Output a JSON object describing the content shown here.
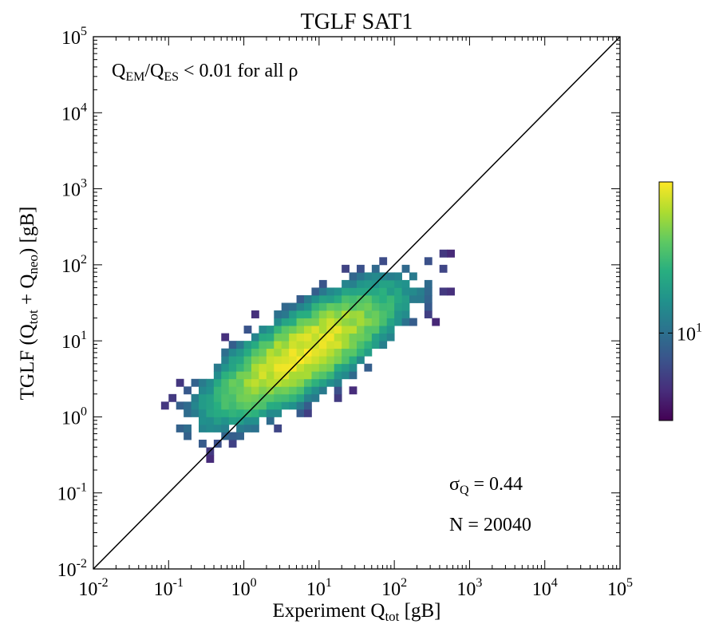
{
  "chart_data": {
    "type": "heatmap",
    "title": "TGLF SAT1",
    "xlabel": {
      "prefix": "Experiment Q",
      "sub": "tot",
      "suffix": " [gB]"
    },
    "ylabel": {
      "prefix": "TGLF (Q",
      "sub1": "tot",
      "mid": " + Q",
      "sub2": "neo",
      "suffix": ") [gB]"
    },
    "x_scale": "log",
    "y_scale": "log",
    "xlim": [
      0.01,
      100000
    ],
    "ylim": [
      0.01,
      100000
    ],
    "x_ticks": [
      {
        "value": 0.01,
        "base": "10",
        "exp": "-2"
      },
      {
        "value": 0.1,
        "base": "10",
        "exp": "-1"
      },
      {
        "value": 1,
        "base": "10",
        "exp": "0"
      },
      {
        "value": 10,
        "base": "10",
        "exp": "1"
      },
      {
        "value": 100,
        "base": "10",
        "exp": "2"
      },
      {
        "value": 1000,
        "base": "10",
        "exp": "3"
      },
      {
        "value": 10000,
        "base": "10",
        "exp": "4"
      },
      {
        "value": 100000,
        "base": "10",
        "exp": "5"
      }
    ],
    "y_ticks": [
      {
        "value": 0.01,
        "base": "10",
        "exp": "-2"
      },
      {
        "value": 0.1,
        "base": "10",
        "exp": "-1"
      },
      {
        "value": 1,
        "base": "10",
        "exp": "0"
      },
      {
        "value": 10,
        "base": "10",
        "exp": "1"
      },
      {
        "value": 100,
        "base": "10",
        "exp": "2"
      },
      {
        "value": 1000,
        "base": "10",
        "exp": "3"
      },
      {
        "value": 10000,
        "base": "10",
        "exp": "4"
      },
      {
        "value": 100000,
        "base": "10",
        "exp": "5"
      }
    ],
    "annotation_top": {
      "q1": "Q",
      "sub1": "EM",
      "slash": "/Q",
      "sub2": "ES",
      "rest": " < 0.01 for all ρ"
    },
    "annotation_sigma": {
      "sym": "σ",
      "sub": "Q",
      "rest": " = 0.44"
    },
    "annotation_n": "N = 20040",
    "reference_line": {
      "from": [
        0.01,
        0.01
      ],
      "to": [
        100000,
        100000
      ]
    },
    "colorbar": {
      "colormap": "viridis",
      "scale": "log",
      "min": 3,
      "max": 80,
      "tick": {
        "value": 10,
        "base": "10",
        "exp": "1"
      }
    },
    "density": {
      "center_log10": [
        0.8,
        0.85
      ],
      "major_axis_direction": [
        1,
        0.62
      ],
      "spread_major": 0.85,
      "spread_minor": 0.28,
      "total_count": 20040,
      "bins_per_decade": 10
    }
  }
}
